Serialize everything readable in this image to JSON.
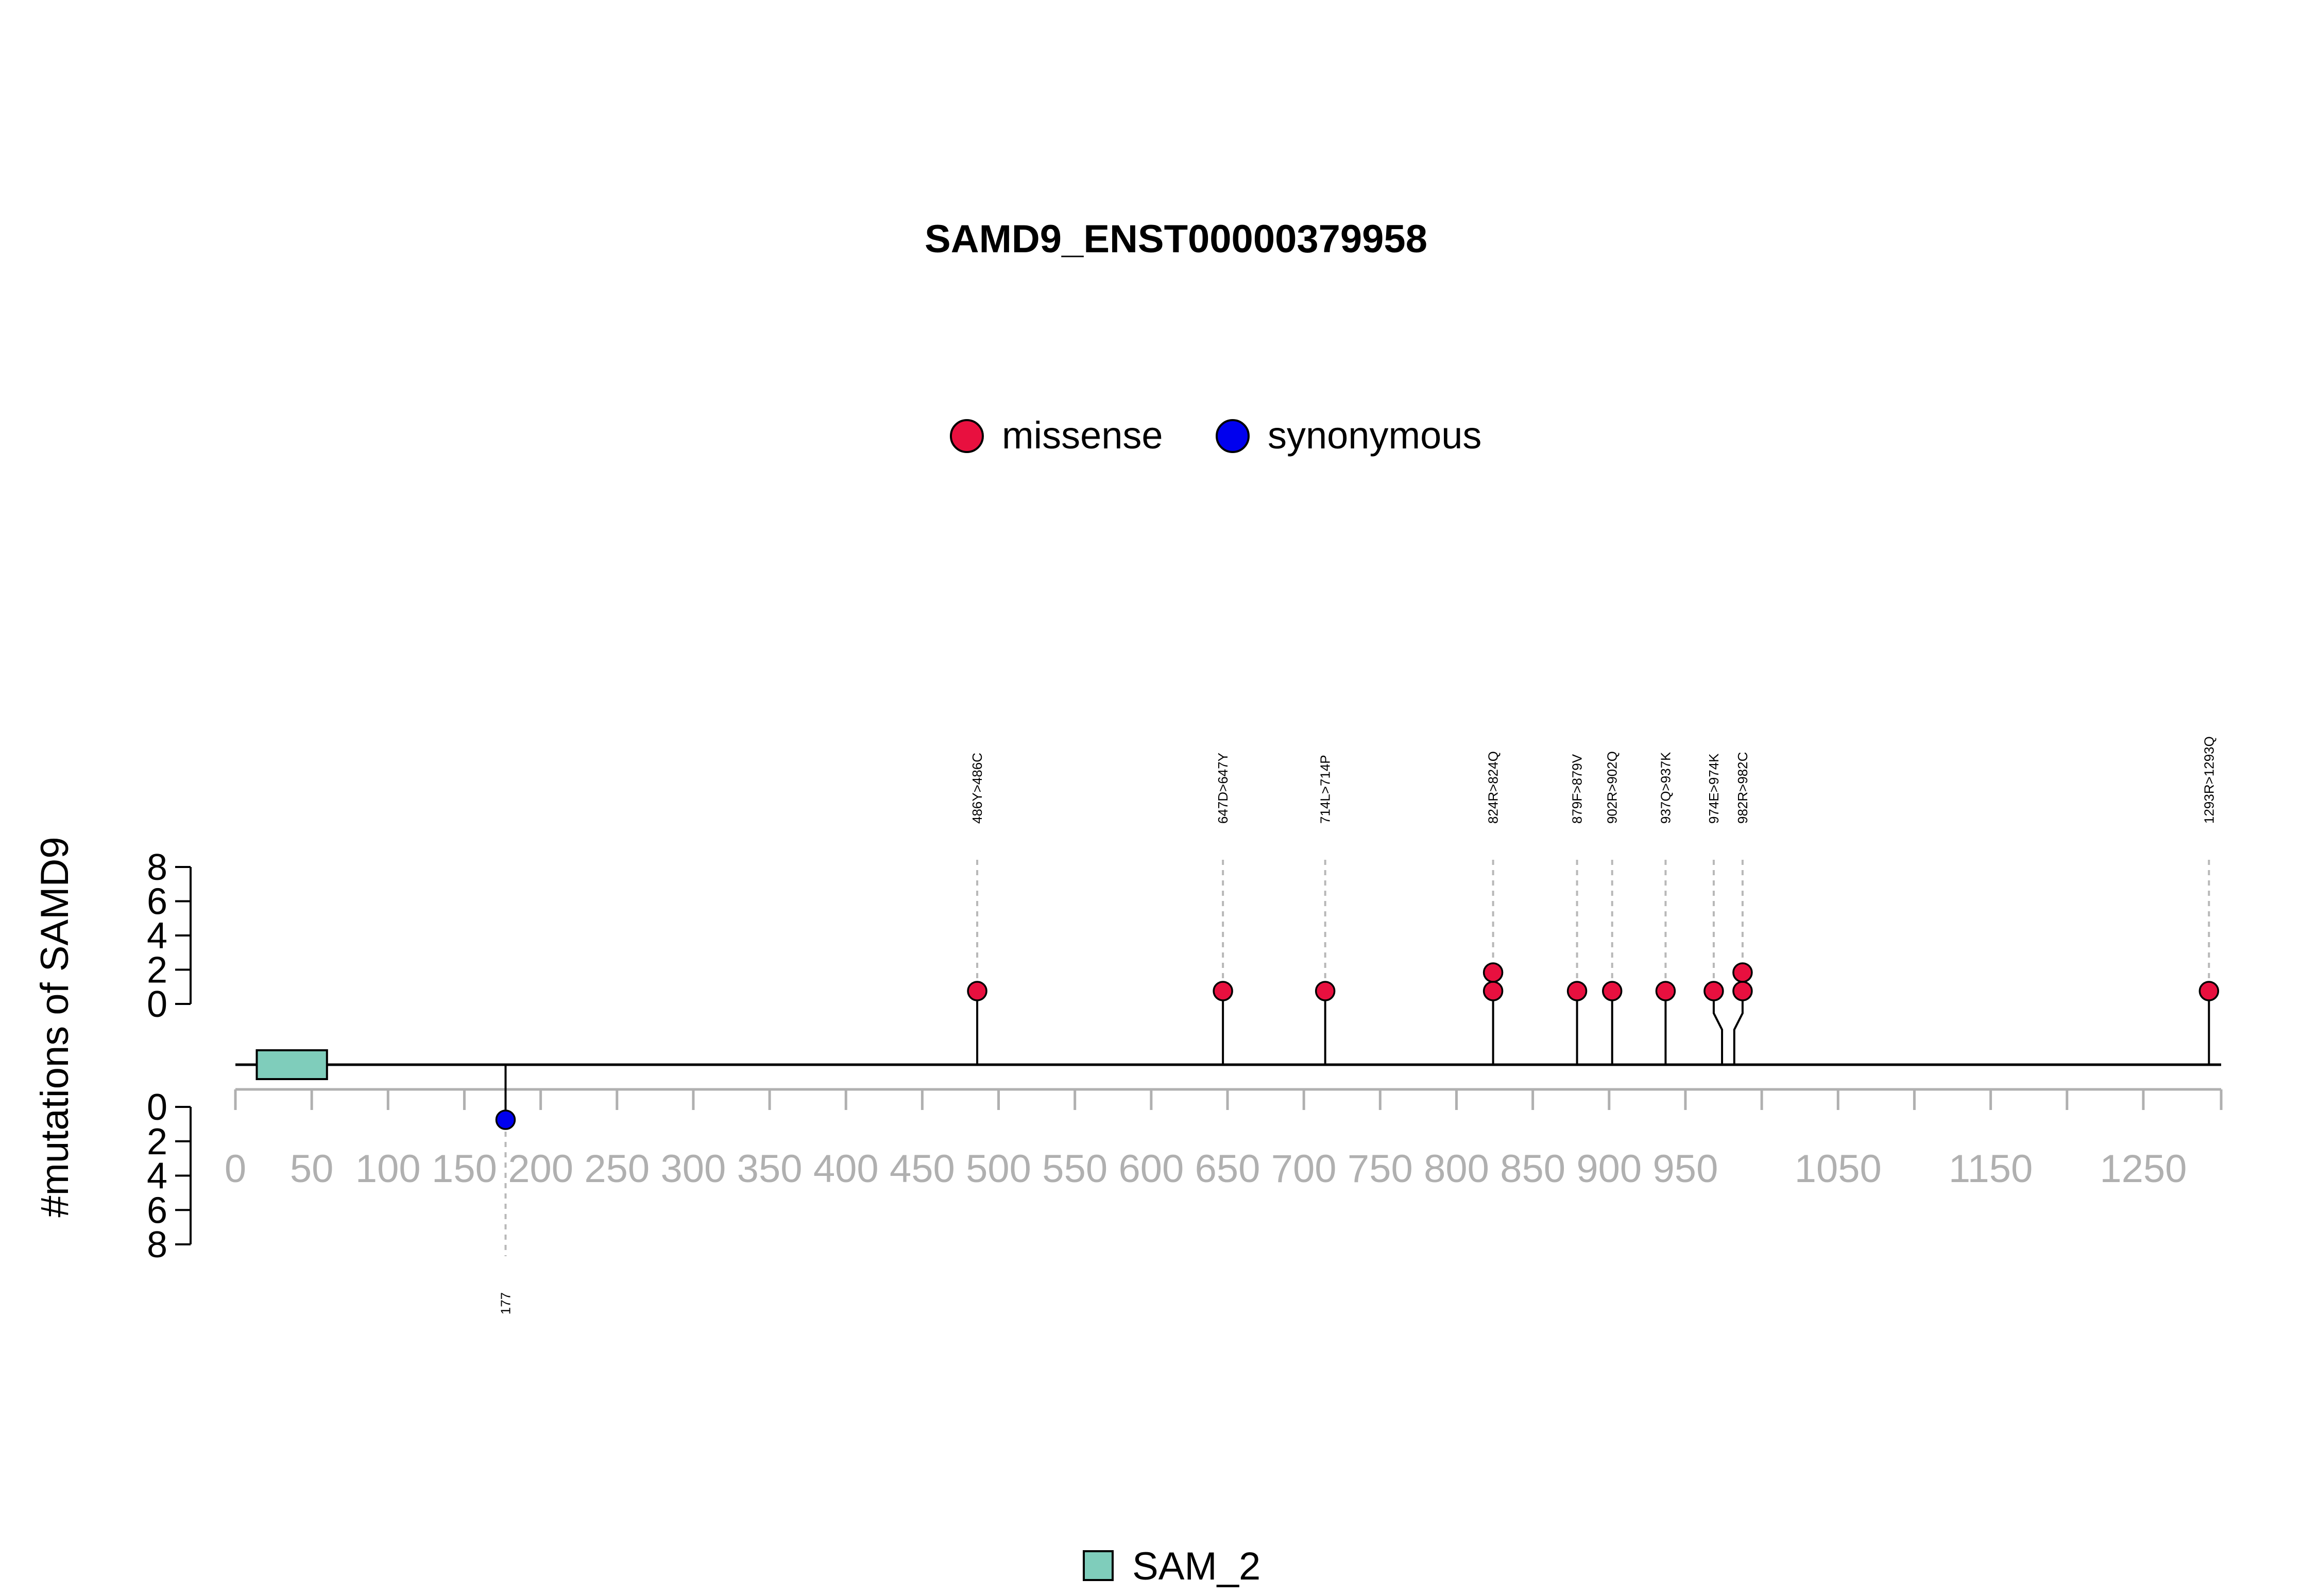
{
  "chart_data": {
    "type": "lollipop",
    "title": "SAMD9_ENST00000379958",
    "ylabel": "#mutations of SAMD9",
    "colors": {
      "missense": "#e8103f",
      "synonymous": "#0000ee",
      "SAM_2": "#7fcdbb",
      "backbone": "#000000",
      "axis_gray": "#b0b0b0",
      "guide": "#b8b8b8"
    },
    "legend": [
      {
        "name": "missense",
        "color": "#e8103f"
      },
      {
        "name": "synonymous",
        "color": "#0000ee"
      }
    ],
    "x_axis": {
      "range": [
        0,
        1301
      ],
      "ticks": [
        0,
        50,
        100,
        150,
        200,
        250,
        300,
        350,
        400,
        450,
        500,
        550,
        600,
        650,
        700,
        750,
        800,
        850,
        900,
        950,
        1000,
        1050,
        1100,
        1150,
        1200,
        1250,
        1301
      ],
      "tick_labels": [
        {
          "value": 0,
          "label": "0"
        },
        {
          "value": 50,
          "label": "50"
        },
        {
          "value": 100,
          "label": "100"
        },
        {
          "value": 150,
          "label": "150"
        },
        {
          "value": 200,
          "label": "200"
        },
        {
          "value": 250,
          "label": "250"
        },
        {
          "value": 300,
          "label": "300"
        },
        {
          "value": 350,
          "label": "350"
        },
        {
          "value": 400,
          "label": "400"
        },
        {
          "value": 450,
          "label": "450"
        },
        {
          "value": 500,
          "label": "500"
        },
        {
          "value": 550,
          "label": "550"
        },
        {
          "value": 600,
          "label": "600"
        },
        {
          "value": 650,
          "label": "650"
        },
        {
          "value": 700,
          "label": "700"
        },
        {
          "value": 750,
          "label": "750"
        },
        {
          "value": 800,
          "label": "800"
        },
        {
          "value": 850,
          "label": "850"
        },
        {
          "value": 900,
          "label": "900"
        },
        {
          "value": 950,
          "label": "950"
        },
        {
          "value": 1050,
          "label": "1050"
        },
        {
          "value": 1150,
          "label": "1150"
        },
        {
          "value": 1250,
          "label": "1250"
        }
      ]
    },
    "y_axis_top": {
      "range": [
        0,
        8
      ],
      "tick_labels": [
        "0",
        "2",
        "4",
        "6",
        "8"
      ]
    },
    "y_axis_bottom": {
      "range": [
        0,
        8
      ],
      "tick_labels": [
        "0",
        "2",
        "4",
        "6",
        "8"
      ]
    },
    "mutations_top": [
      {
        "pos": 486,
        "label": "486Y>486C",
        "type": "missense",
        "count": 1
      },
      {
        "pos": 647,
        "label": "647D>647Y",
        "type": "missense",
        "count": 1
      },
      {
        "pos": 714,
        "label": "714L>714P",
        "type": "missense",
        "count": 1
      },
      {
        "pos": 824,
        "label": "824R>824Q",
        "type": "missense",
        "count": 2
      },
      {
        "pos": 879,
        "label": "879F>879V",
        "type": "missense",
        "count": 1
      },
      {
        "pos": 902,
        "label": "902R>902Q",
        "type": "missense",
        "count": 1
      },
      {
        "pos": 937,
        "label": "937Q>937K",
        "type": "missense",
        "count": 1
      },
      {
        "pos": 974,
        "label": "974E>974K",
        "type": "missense",
        "count": 1
      },
      {
        "pos": 982,
        "label": "982R>982C",
        "type": "missense",
        "count": 2
      },
      {
        "pos": 1293,
        "label": "1293R>1293Q",
        "type": "missense",
        "count": 1
      }
    ],
    "mutations_bottom": [
      {
        "pos": 177,
        "label": "177",
        "type": "synonymous",
        "count": 1
      }
    ],
    "domains": [
      {
        "name": "SAM_2",
        "start": 14,
        "end": 60,
        "color": "#7fcdbb"
      }
    ],
    "domain_legend": [
      {
        "name": "SAM_2",
        "color": "#7fcdbb"
      }
    ]
  }
}
